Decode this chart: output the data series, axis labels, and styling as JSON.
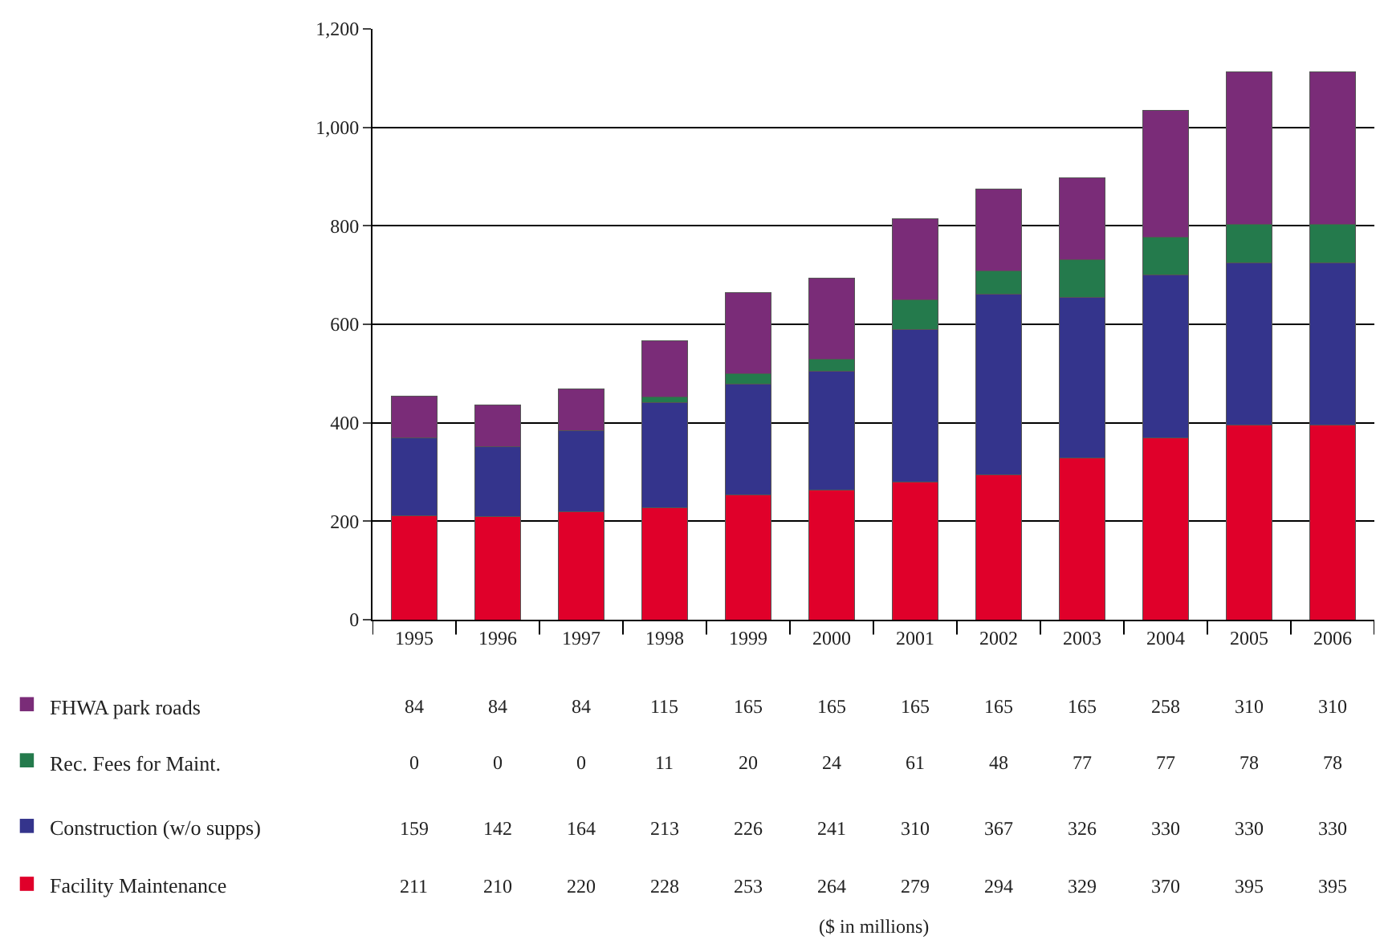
{
  "chart_data": {
    "type": "bar",
    "stacked": true,
    "data_labels": true,
    "legend": "bottom left",
    "grid": "y",
    "categories": [
      "1995",
      "1996",
      "1997",
      "1998",
      "1999",
      "2000",
      "2001",
      "2002",
      "2003",
      "2004",
      "2005",
      "2006"
    ],
    "series": [
      {
        "name": "Facility Maintenance",
        "color": "#e0002a",
        "values": [
          211,
          210,
          220,
          228,
          253,
          264,
          279,
          294,
          329,
          370,
          395,
          395
        ]
      },
      {
        "name": "Construction (w/o supps)",
        "color": "#34348c",
        "values": [
          159,
          142,
          164,
          213,
          226,
          241,
          310,
          367,
          326,
          330,
          330,
          330
        ]
      },
      {
        "name": "Rec. Fees for Maint.",
        "color": "#247a4c",
        "values": [
          0,
          0,
          0,
          11,
          20,
          24,
          61,
          48,
          77,
          77,
          78,
          78
        ]
      },
      {
        "name": "FHWA park roads",
        "color": "#7a2c78",
        "values": [
          84,
          84,
          84,
          115,
          165,
          165,
          165,
          165,
          165,
          258,
          310,
          310
        ]
      }
    ],
    "ylim": [
      0,
      1200
    ],
    "yticks": [
      0,
      200,
      400,
      600,
      800,
      {
        "value": 1000,
        "label": "1,000"
      },
      {
        "value": 1200,
        "label": "1,200"
      }
    ],
    "annotations": [
      "($ in millions)"
    ]
  }
}
